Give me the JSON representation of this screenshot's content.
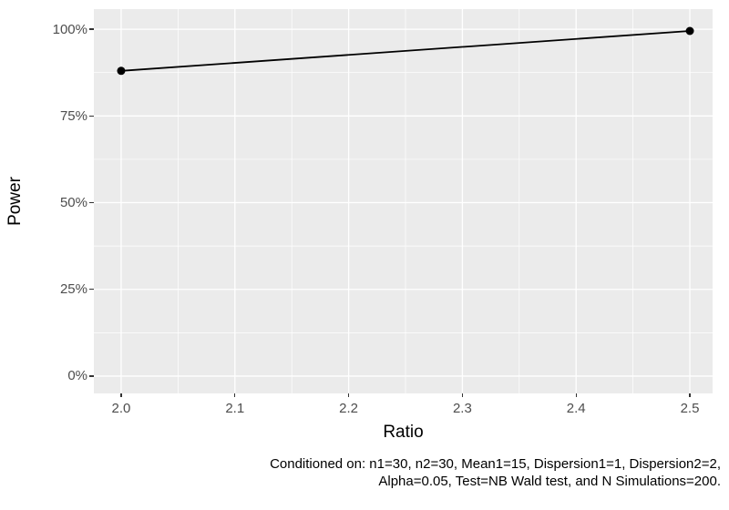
{
  "chart_data": {
    "type": "line",
    "title": "",
    "xlabel": "Ratio",
    "ylabel": "Power",
    "x": [
      2.0,
      2.5
    ],
    "series": [
      {
        "name": "Power",
        "values_percent": [
          88,
          99.5
        ]
      }
    ],
    "x_ticks": [
      2.0,
      2.1,
      2.2,
      2.3,
      2.4,
      2.5
    ],
    "x_tick_labels": [
      "2.0",
      "2.1",
      "2.2",
      "2.3",
      "2.4",
      "2.5"
    ],
    "x_minor_ticks": [
      2.05,
      2.15,
      2.25,
      2.35,
      2.45
    ],
    "y_ticks": [
      0,
      25,
      50,
      75,
      100
    ],
    "y_tick_labels": [
      "0%",
      "25%",
      "50%",
      "75%",
      "100%"
    ],
    "y_minor_ticks": [
      12.5,
      37.5,
      62.5,
      87.5
    ],
    "xlim": [
      1.976,
      2.52
    ],
    "ylim": [
      -5,
      105.8
    ],
    "grid": true,
    "legend": "none",
    "colors": {
      "panel_background": "#ebebeb",
      "grid": "#ffffff",
      "line": "#000000",
      "point": "#000000",
      "tick_label": "#4d4d4d",
      "tick_mark": "#333333",
      "axis_title": "#000000",
      "caption": "#000000"
    },
    "caption_lines": [
      "Conditioned on: n1=30, n2=30, Mean1=15, Dispersion1=1, Dispersion2=2,",
      "Alpha=0.05, Test=NB Wald test, and N Simulations=200."
    ],
    "conditioned_on": {
      "n1": "30",
      "n2": "30",
      "Mean1": "15",
      "Dispersion1": "1",
      "Dispersion2": "2",
      "Alpha": "0.05",
      "Test": "NB Wald test",
      "N Simulations": "200"
    }
  }
}
